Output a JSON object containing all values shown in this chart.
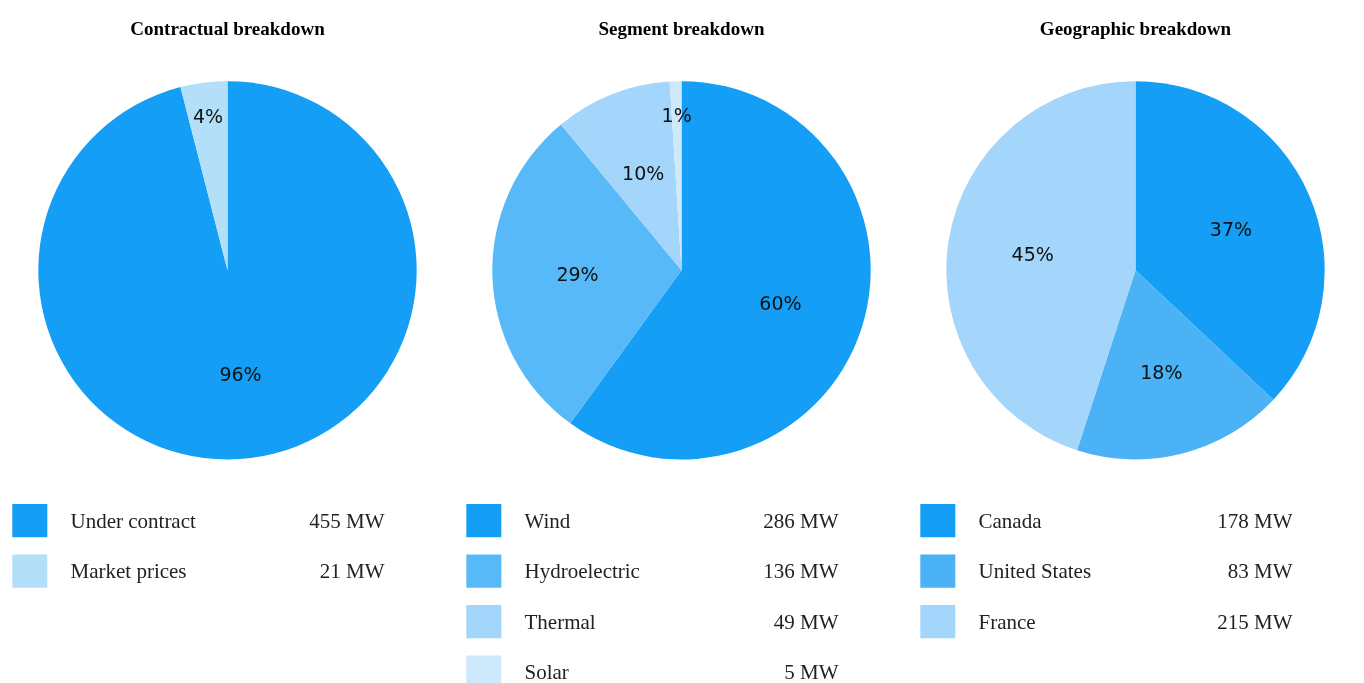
{
  "chart_data": [
    {
      "type": "pie",
      "title": "Contractual breakdown",
      "categories": [
        "Under contract",
        "Market prices"
      ],
      "values": [
        96,
        4
      ],
      "colors": [
        "#149ef5",
        "#b3dff9"
      ],
      "value_labels": [
        "96%",
        "4%"
      ],
      "annotations": [
        "455 MW",
        "21 MW"
      ],
      "legend": "bottom"
    },
    {
      "type": "pie",
      "title": "Segment breakdown",
      "categories": [
        "Wind",
        "Hydroelectric",
        "Thermal",
        "Solar"
      ],
      "values": [
        60,
        29,
        10,
        1
      ],
      "colors": [
        "#149ef5",
        "#57b9f8",
        "#a3d6fa",
        "#cde9fb"
      ],
      "value_labels": [
        "60%",
        "29%",
        "10%",
        "1%"
      ],
      "annotations": [
        "286 MW",
        "136 MW",
        "49 MW",
        "5 MW"
      ],
      "legend": "bottom"
    },
    {
      "type": "pie",
      "title": "Geographic breakdown",
      "categories": [
        "Canada",
        "United States",
        "France"
      ],
      "values": [
        37,
        18,
        45
      ],
      "colors": [
        "#149ef5",
        "#4ab2f5",
        "#a3d6fa"
      ],
      "value_labels": [
        "37%",
        "18%",
        "45%"
      ],
      "annotations": [
        "178 MW",
        "83 MW",
        "215 MW"
      ],
      "legend": "bottom"
    }
  ]
}
